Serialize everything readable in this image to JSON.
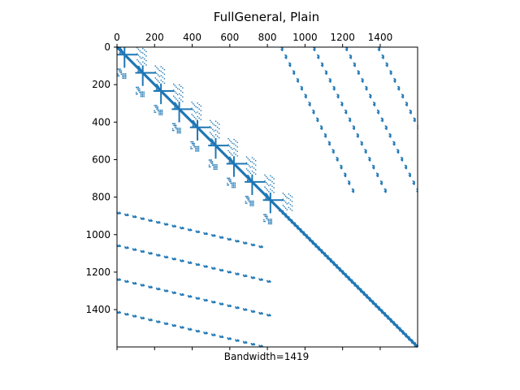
{
  "chart_data": {
    "type": "scatter",
    "title": "FullGeneral, Plain",
    "xlabel": "Bandwidth=1419",
    "ylabel": "",
    "xlim": [
      0,
      1599
    ],
    "ylim": [
      1599,
      0
    ],
    "x_axis_position": "top",
    "grid": false,
    "legend": "none",
    "marker_color": "#1f77b4",
    "x_ticks": [
      0,
      200,
      400,
      600,
      800,
      1000,
      1200,
      1400
    ],
    "x_tick_labels": [
      "0",
      "200",
      "400",
      "600",
      "800",
      "1000",
      "1200",
      "1400"
    ],
    "y_ticks": [
      0,
      200,
      400,
      600,
      800,
      1000,
      1200,
      1400
    ],
    "y_tick_labels": [
      "0",
      "200",
      "400",
      "600",
      "800",
      "1000",
      "1200",
      "1400"
    ],
    "structure": {
      "matrix_size": 1599,
      "diagonal_blocks": {
        "count": 9,
        "start": 0,
        "step": 97,
        "block_size": 97
      },
      "tail_diagonal_band": {
        "from": 873,
        "to": 1599,
        "width": 10
      },
      "upper_right_diagonals": [
        {
          "col_start": 873,
          "row_start": 0,
          "row_end": 780,
          "col_step": 21
        },
        {
          "col_start": 1045,
          "row_start": 0,
          "row_end": 780,
          "col_step": 21
        },
        {
          "col_start": 1217,
          "row_start": 0,
          "row_end": 790,
          "col_step": 21
        },
        {
          "col_start": 1389,
          "row_start": 0,
          "row_end": 820,
          "col_step": 21
        }
      ],
      "lower_left_rows": [
        {
          "row_start": 880,
          "col_start": 0,
          "col_end": 780,
          "row_step": 10
        },
        {
          "row_start": 1055,
          "col_start": 0,
          "col_end": 820,
          "row_step": 10
        },
        {
          "row_start": 1235,
          "col_start": 0,
          "col_end": 820,
          "row_step": 10
        },
        {
          "row_start": 1410,
          "col_start": 0,
          "col_end": 820,
          "row_step": 10
        }
      ]
    }
  }
}
